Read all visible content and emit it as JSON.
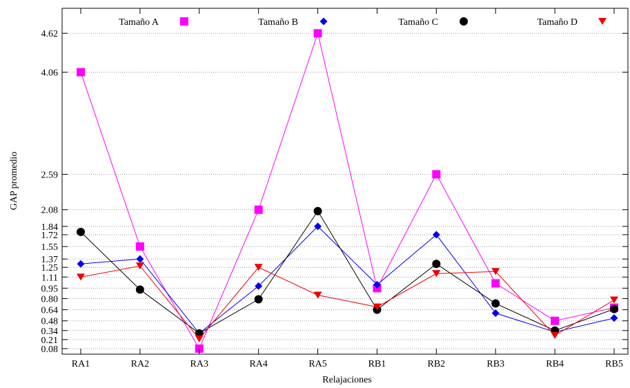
{
  "chart_data": {
    "type": "line",
    "xlabel": "Relajaciones",
    "ylabel": "GAP promedio",
    "categories": [
      "RA1",
      "RA2",
      "RA3",
      "RA4",
      "RA5",
      "RB1",
      "RB2",
      "RB3",
      "RB4",
      "RB5"
    ],
    "yticks": [
      "0.08",
      "0.21",
      "0.34",
      "0.48",
      "0.64",
      "0.80",
      "0.95",
      "1.11",
      "1.25",
      "1.37",
      "1.55",
      "1.72",
      "1.84",
      "2.08",
      "2.59",
      "4.06",
      "4.62"
    ],
    "ylim": [
      0.0,
      4.98
    ],
    "grid": "horizontal dotted",
    "legend_position": "top",
    "series": [
      {
        "name": "Tamaño A",
        "marker": "square",
        "color": "#ff00ff",
        "values": [
          4.06,
          1.55,
          0.08,
          2.08,
          4.62,
          0.95,
          2.59,
          1.02,
          0.48,
          0.67
        ]
      },
      {
        "name": "Tamaño B",
        "marker": "diamond",
        "color": "#0000ee",
        "values": [
          1.3,
          1.37,
          0.3,
          0.98,
          1.84,
          1.0,
          1.72,
          0.59,
          0.32,
          0.52
        ]
      },
      {
        "name": "Tamaño C",
        "marker": "circle",
        "color": "#000000",
        "values": [
          1.76,
          0.93,
          0.3,
          0.79,
          2.06,
          0.64,
          1.3,
          0.73,
          0.34,
          0.65
        ]
      },
      {
        "name": "Tamaño D",
        "marker": "triangle-down",
        "color": "#ee0000",
        "values": [
          1.11,
          1.27,
          0.22,
          1.25,
          0.85,
          0.68,
          1.16,
          1.19,
          0.27,
          0.78
        ]
      }
    ]
  }
}
